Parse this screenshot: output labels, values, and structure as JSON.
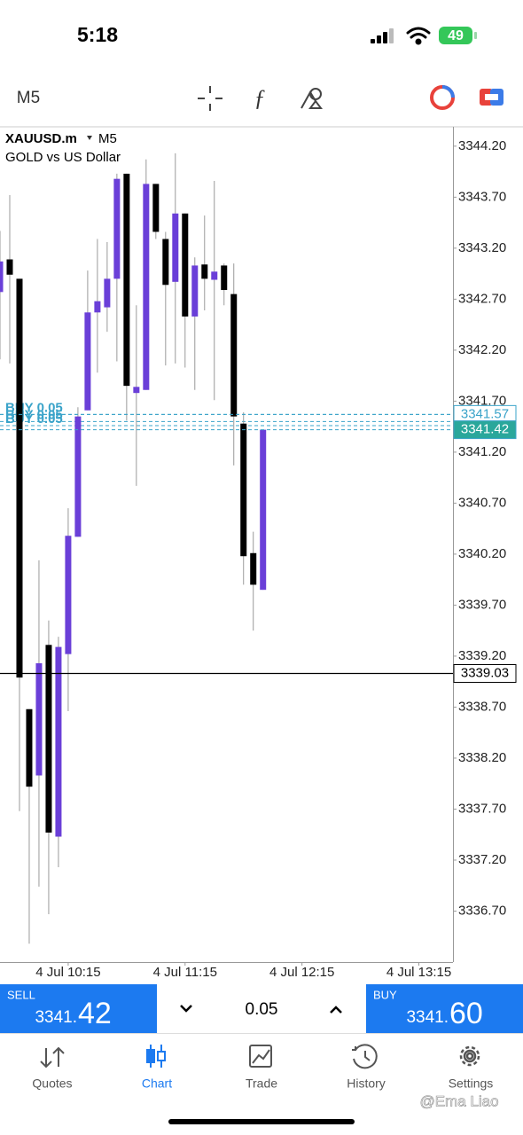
{
  "status_bar": {
    "time": "5:18",
    "battery": "49"
  },
  "toolbar": {
    "timeframe": "M5"
  },
  "chart_data": {
    "type": "candlestick",
    "symbol": "XAUUSD.m",
    "timeframe": "M5",
    "description": "GOLD vs US Dollar",
    "x": [
      0,
      1,
      2,
      3,
      4,
      5,
      6,
      7,
      8,
      9,
      10,
      11,
      12,
      13,
      14,
      15,
      16,
      17,
      18,
      19,
      20,
      21,
      22,
      23,
      24,
      25,
      26,
      27
    ],
    "open": [
      3342.77,
      3343.09,
      3342.9,
      3338.68,
      3338.03,
      3339.31,
      3337.43,
      3339.22,
      3340.37,
      3341.61,
      3342.57,
      3342.62,
      3342.9,
      3343.93,
      3341.78,
      3341.81,
      3343.83,
      3343.29,
      3342.87,
      3343.54,
      3342.53,
      3343.04,
      3342.89,
      3343.03,
      3342.75,
      3341.48,
      3340.21,
      3339.85
    ],
    "high": [
      3343.37,
      3343.72,
      3342.9,
      3338.68,
      3340.14,
      3339.55,
      3339.39,
      3340.65,
      3341.64,
      3342.98,
      3343.29,
      3343.26,
      3343.93,
      3343.93,
      3342.64,
      3344.07,
      3343.83,
      3343.36,
      3344.13,
      3343.54,
      3343.11,
      3343.52,
      3343.86,
      3343.05,
      3343.05,
      3341.59,
      3340.42,
      3341.42
    ],
    "low": [
      3342.11,
      3342.07,
      3337.68,
      3336.38,
      3336.94,
      3336.67,
      3337.13,
      3338.66,
      3340.37,
      3341.61,
      3341.98,
      3342.38,
      3342.09,
      3341.51,
      3340.87,
      3341.81,
      3343.29,
      3342.05,
      3342.07,
      3342.03,
      3341.81,
      3342.59,
      3341.71,
      3342.64,
      3341.07,
      3339.9,
      3339.45,
      3339.85
    ],
    "close": [
      3343.07,
      3342.94,
      3338.99,
      3337.92,
      3339.13,
      3337.47,
      3339.29,
      3340.38,
      3341.55,
      3342.57,
      3342.68,
      3342.9,
      3343.88,
      3341.85,
      3341.84,
      3343.83,
      3343.36,
      3342.84,
      3343.54,
      3342.53,
      3343.03,
      3342.9,
      3342.97,
      3342.79,
      3341.55,
      3340.18,
      3339.9,
      3341.42
    ],
    "up_color": "#6a3fd8",
    "down_color": "#000000",
    "wick_color": "#9a9a9a",
    "xlim": [
      0,
      46.5
    ],
    "xticks": [
      {
        "value": 7,
        "label": "4 Jul 10:15"
      },
      {
        "value": 19,
        "label": "4 Jul 11:15"
      },
      {
        "value": 31,
        "label": "4 Jul 12:15"
      },
      {
        "value": 43,
        "label": "4 Jul 13:15"
      }
    ],
    "ylim": [
      3336.2,
      3344.39
    ],
    "yticks": [
      {
        "value": 3344.2,
        "label": "3344.20"
      },
      {
        "value": 3343.7,
        "label": "3343.70"
      },
      {
        "value": 3343.2,
        "label": "3343.20"
      },
      {
        "value": 3342.7,
        "label": "3342.70"
      },
      {
        "value": 3342.2,
        "label": "3342.20"
      },
      {
        "value": 3341.7,
        "label": "3341.70"
      },
      {
        "value": 3341.2,
        "label": "3341.20"
      },
      {
        "value": 3340.7,
        "label": "3340.70"
      },
      {
        "value": 3340.2,
        "label": "3340.20"
      },
      {
        "value": 3339.7,
        "label": "3339.70"
      },
      {
        "value": 3339.2,
        "label": "3339.20"
      },
      {
        "value": 3338.7,
        "label": "3338.70"
      },
      {
        "value": 3338.2,
        "label": "3338.20"
      },
      {
        "value": 3337.7,
        "label": "3337.70"
      },
      {
        "value": 3337.2,
        "label": "3337.20"
      },
      {
        "value": 3336.7,
        "label": "3336.70"
      }
    ],
    "bid_line": {
      "value": 3339.03,
      "color": "#000000"
    },
    "orders": [
      {
        "label": "BUY 0.05",
        "price": 3341.57
      },
      {
        "label": "BUY 0.05",
        "price": 3341.5
      },
      {
        "label": "BUY 0.05",
        "price": 3341.46
      }
    ],
    "price_lines": [
      {
        "value": 3341.57,
        "label": "3341.57",
        "style": "outline"
      },
      {
        "value": 3341.42,
        "label": "3341.42",
        "style": "filled"
      }
    ],
    "line_color": "#3aa3c9"
  },
  "trade_panel": {
    "sell": {
      "label": "SELL",
      "price_small": "3341.",
      "price_big": "42"
    },
    "lot": "0.05",
    "buy": {
      "label": "BUY",
      "price_small": "3341.",
      "price_big": "60"
    }
  },
  "tab_bar": {
    "tabs": [
      "Quotes",
      "Chart",
      "Trade",
      "History",
      "Settings"
    ],
    "active": 1
  },
  "watermark": "@Ema Liao"
}
